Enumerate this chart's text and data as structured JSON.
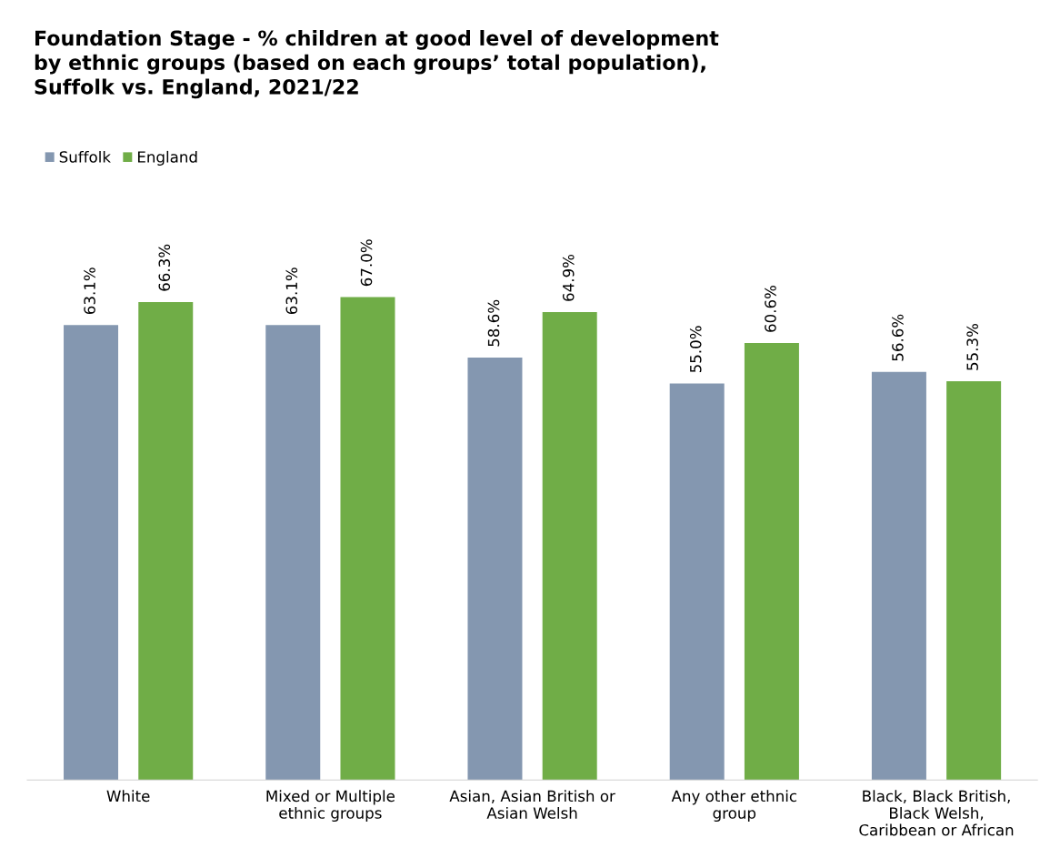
{
  "chart_data": {
    "type": "bar",
    "title": "Foundation Stage - % children at good level of development\nby ethnic groups (based on each groups’ total population),\nSuffolk vs. England, 2021/22",
    "categories": [
      "White",
      "Mixed or Multiple\nethnic groups",
      "Asian, Asian British or\nAsian Welsh",
      "Any other ethnic\ngroup",
      "Black, Black British,\nBlack Welsh,\nCaribbean or African"
    ],
    "series": [
      {
        "name": "Suffolk",
        "color": "#8497b0",
        "values": [
          63.1,
          63.1,
          58.6,
          55.0,
          56.6
        ],
        "value_labels": [
          "63.1%",
          "63.1%",
          "58.6%",
          "55.0%",
          "56.6%"
        ]
      },
      {
        "name": "England",
        "color": "#70ad47",
        "values": [
          66.3,
          67.0,
          64.9,
          60.6,
          55.3
        ],
        "value_labels": [
          "66.3%",
          "67.0%",
          "64.9%",
          "60.6%",
          "55.3%"
        ]
      }
    ],
    "legend": "top left",
    "grid": false,
    "tick_labels": "x"
  }
}
